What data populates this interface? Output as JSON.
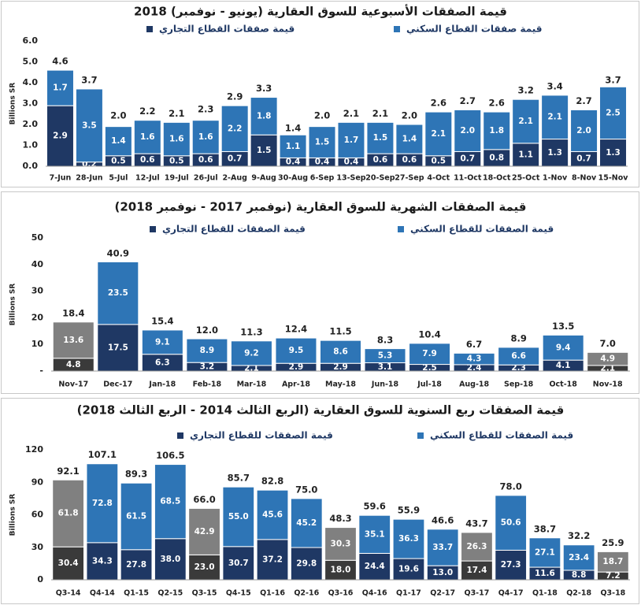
{
  "chart_data": [
    {
      "type": "bar",
      "stacked": true,
      "title": "قيمة الصفقات الأسبوعية للسوق العقارية (يونيو - نوفمبر) 2018",
      "ylabel": "Billions SR",
      "legend": "top",
      "grid": false,
      "categories": [
        "7-Jun",
        "28-Jun",
        "5-Jul",
        "12-Jul",
        "19-Jul",
        "26-Jul",
        "2-Aug",
        "9-Aug",
        "30-Aug",
        "6-Sep",
        "13-Sep",
        "20-Sep",
        "27-Sep",
        "4-Oct",
        "11-Oct",
        "18-Oct",
        "25-Oct",
        "1-Nov",
        "8-Nov",
        "15-Nov"
      ],
      "series": [
        {
          "name": "قيمة صفقات القطاع التجاري",
          "color": "#1f3864",
          "values": [
            2.9,
            0.2,
            0.5,
            0.6,
            0.5,
            0.6,
            0.7,
            1.5,
            0.4,
            0.4,
            0.4,
            0.6,
            0.6,
            0.5,
            0.7,
            0.8,
            1.1,
            1.3,
            0.7,
            1.3
          ],
          "value_labels": [
            "2.9",
            "0.2",
            "0.5",
            "0.6",
            "0.5",
            "0.6",
            "0.7",
            "1.5",
            "0.4",
            "0.4",
            "0.4",
            "0.6",
            "0.6",
            "0.5",
            "0.7",
            "0.8",
            "1.1",
            "1.3",
            "0.7",
            "1.3"
          ]
        },
        {
          "name": "قيمة صفقات القطاع السكني",
          "color": "#2e75b6",
          "values": [
            1.7,
            3.5,
            1.4,
            1.6,
            1.6,
            1.6,
            2.2,
            1.8,
            1.1,
            1.5,
            1.7,
            1.5,
            1.4,
            2.1,
            2.0,
            1.8,
            2.1,
            2.1,
            2.0,
            2.5
          ],
          "value_labels": [
            "1.7",
            "3.5",
            "1.4",
            "1.6",
            "1.6",
            "1.6",
            "2.2",
            "1.8",
            "1.1",
            "1.5",
            "1.7",
            "1.5",
            "1.4",
            "2.1",
            "2.0",
            "1.8",
            "2.1",
            "2.1",
            "2.0",
            "2.5"
          ]
        }
      ],
      "totals": [
        4.6,
        3.7,
        2.0,
        2.2,
        2.1,
        2.3,
        2.9,
        3.3,
        1.4,
        2.0,
        2.1,
        2.1,
        2.0,
        2.6,
        2.7,
        2.6,
        3.2,
        3.4,
        2.7,
        3.7
      ],
      "total_labels": [
        "4.6",
        "3.7",
        "2.0",
        "2.2",
        "2.1",
        "2.3",
        "2.9",
        "3.3",
        "1.4",
        "2.0",
        "2.1",
        "2.1",
        "2.0",
        "2.6",
        "2.7",
        "2.6",
        "3.2",
        "3.4",
        "2.7",
        "3.7"
      ],
      "ylim": [
        0,
        6
      ],
      "yticks": [
        {
          "value": 0,
          "label": "0.0"
        },
        {
          "value": 1,
          "label": "1.0"
        },
        {
          "value": 2,
          "label": "2.0"
        },
        {
          "value": 3,
          "label": "3.0"
        },
        {
          "value": 4,
          "label": "4.0"
        },
        {
          "value": 5,
          "label": "5.0"
        },
        {
          "value": 6,
          "label": "6.0"
        }
      ]
    },
    {
      "type": "bar",
      "stacked": true,
      "title": "قيمة الصفقات الشهرية للسوق العقارية (نوفمبر 2017 - نوفمبر 2018)",
      "ylabel": "Billions SR",
      "legend": "top",
      "grid": false,
      "categories": [
        "Nov-17",
        "Dec-17",
        "Jan-18",
        "Feb-18",
        "Mar-18",
        "Apr-18",
        "May-18",
        "Jun-18",
        "Jul-18",
        "Aug-18",
        "Sep-18",
        "Oct-18",
        "Nov-18"
      ],
      "series": [
        {
          "name": "قيمة الصفقات للقطاع التجاري",
          "color": "#1f3864",
          "colors": [
            "#3a3a3a",
            "#1f3864",
            "#1f3864",
            "#1f3864",
            "#1f3864",
            "#1f3864",
            "#1f3864",
            "#1f3864",
            "#1f3864",
            "#1f3864",
            "#1f3864",
            "#1f3864",
            "#3a3a3a"
          ],
          "values": [
            4.8,
            17.5,
            6.3,
            3.2,
            2.1,
            2.9,
            2.9,
            3.1,
            2.5,
            2.4,
            2.3,
            4.1,
            2.1
          ],
          "value_labels": [
            "4.8",
            "17.5",
            "6.3",
            "3.2",
            "2.1",
            "2.9",
            "2.9",
            "3.1",
            "2.5",
            "2.4",
            "2.3",
            "4.1",
            "2.1"
          ]
        },
        {
          "name": "قيمة الصفقات للقطاع السكني",
          "color": "#2e75b6",
          "colors": [
            "#808080",
            "#2e75b6",
            "#2e75b6",
            "#2e75b6",
            "#2e75b6",
            "#2e75b6",
            "#2e75b6",
            "#2e75b6",
            "#2e75b6",
            "#2e75b6",
            "#2e75b6",
            "#2e75b6",
            "#808080"
          ],
          "values": [
            13.6,
            23.5,
            9.1,
            8.9,
            9.2,
            9.5,
            8.6,
            5.3,
            7.9,
            4.3,
            6.6,
            9.4,
            4.9
          ],
          "value_labels": [
            "13.6",
            "23.5",
            "9.1",
            "8.9",
            "9.2",
            "9.5",
            "8.6",
            "5.3",
            "7.9",
            "4.3",
            "6.6",
            "9.4",
            "4.9"
          ]
        }
      ],
      "totals": [
        18.4,
        40.9,
        15.4,
        12.0,
        11.3,
        12.4,
        11.5,
        8.3,
        10.4,
        6.7,
        8.9,
        13.5,
        7.0
      ],
      "total_labels": [
        "18.4",
        "40.9",
        "15.4",
        "12.0",
        "11.3",
        "12.4",
        "11.5",
        "8.3",
        "10.4",
        "6.7",
        "8.9",
        "13.5",
        "7.0"
      ],
      "ylim": [
        0,
        50
      ],
      "yticks": [
        {
          "value": 0,
          "label": "-"
        },
        10,
        20,
        30,
        40,
        50
      ]
    },
    {
      "type": "bar",
      "stacked": true,
      "title": "قيمة الصفقات ربع السنوية للسوق العقارية (الربع الثالث 2014 - الربع الثالث 2018)",
      "ylabel": "Billions SR",
      "legend": "top",
      "grid": false,
      "categories": [
        "Q3-14",
        "Q4-14",
        "Q1-15",
        "Q2-15",
        "Q3-15",
        "Q4-15",
        "Q1-16",
        "Q2-16",
        "Q3-16",
        "Q4-16",
        "Q1-17",
        "Q2-17",
        "Q3-17",
        "Q4-17",
        "Q1-18",
        "Q2-18",
        "Q3-18"
      ],
      "series": [
        {
          "name": "قيمة الصفقات للقطاع التجاري",
          "color": "#1f3864",
          "colors": [
            "#3a3a3a",
            "#1f3864",
            "#1f3864",
            "#1f3864",
            "#3a3a3a",
            "#1f3864",
            "#1f3864",
            "#1f3864",
            "#3a3a3a",
            "#1f3864",
            "#1f3864",
            "#1f3864",
            "#3a3a3a",
            "#1f3864",
            "#1f3864",
            "#1f3864",
            "#3a3a3a"
          ],
          "values": [
            30.4,
            34.3,
            27.8,
            38.0,
            23.0,
            30.7,
            37.2,
            29.8,
            18.0,
            24.4,
            19.6,
            13.0,
            17.4,
            27.3,
            11.6,
            8.8,
            7.2
          ],
          "value_labels": [
            "30.4",
            "34.3",
            "27.8",
            "38.0",
            "23.0",
            "30.7",
            "37.2",
            "29.8",
            "18.0",
            "24.4",
            "19.6",
            "13.0",
            "17.4",
            "27.3",
            "11.6",
            "8.8",
            "7.2"
          ]
        },
        {
          "name": "قيمة الصفقات للقطاع السكني",
          "color": "#2e75b6",
          "colors": [
            "#808080",
            "#2e75b6",
            "#2e75b6",
            "#2e75b6",
            "#808080",
            "#2e75b6",
            "#2e75b6",
            "#2e75b6",
            "#808080",
            "#2e75b6",
            "#2e75b6",
            "#2e75b6",
            "#808080",
            "#2e75b6",
            "#2e75b6",
            "#2e75b6",
            "#808080"
          ],
          "values": [
            61.8,
            72.8,
            61.5,
            68.5,
            42.9,
            55.0,
            45.6,
            45.2,
            30.3,
            35.1,
            36.3,
            33.7,
            26.3,
            50.6,
            27.1,
            23.4,
            18.7
          ],
          "value_labels": [
            "61.8",
            "72.8",
            "61.5",
            "68.5",
            "42.9",
            "55.0",
            "45.6",
            "45.2",
            "30.3",
            "35.1",
            "36.3",
            "33.7",
            "26.3",
            "50.6",
            "27.1",
            "23.4",
            "18.7"
          ]
        }
      ],
      "totals": [
        92.1,
        107.1,
        89.3,
        106.5,
        66.0,
        85.7,
        82.8,
        75.0,
        48.3,
        59.6,
        55.9,
        46.6,
        43.7,
        78.0,
        38.7,
        32.2,
        25.9
      ],
      "total_labels": [
        "92.1",
        "107.1",
        "89.3",
        "106.5",
        "66.0",
        "85.7",
        "82.8",
        "75.0",
        "48.3",
        "59.6",
        "55.9",
        "46.6",
        "43.7",
        "78.0",
        "38.7",
        "32.2",
        "25.9"
      ],
      "ylim": [
        0,
        120
      ],
      "yticks": [
        0,
        30,
        60,
        90,
        120
      ]
    }
  ]
}
